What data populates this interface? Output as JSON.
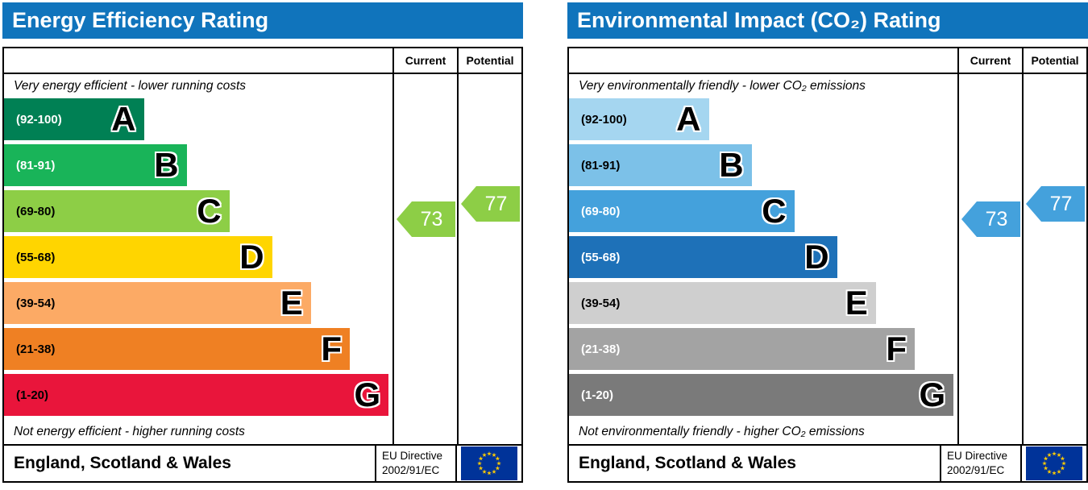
{
  "charts": [
    {
      "title": "Energy Efficiency Rating",
      "current_label": "Current",
      "potential_label": "Potential",
      "top_caption": "Very energy efficient - lower running costs",
      "bottom_caption": "Not energy efficient - higher running costs",
      "footer_region": "England, Scotland & Wales",
      "directive_line1": "EU Directive",
      "directive_line2": "2002/91/EC",
      "current": 73,
      "potential": 77,
      "header_color": "#1074bc",
      "current_arrow_color": "#8dce46",
      "potential_arrow_color": "#8dce46",
      "bands": [
        {
          "letter": "A",
          "range": "(92-100)",
          "low": 92,
          "high": 100,
          "color": "#008054",
          "text_color": "#ffffff",
          "width_pct": 36
        },
        {
          "letter": "B",
          "range": "(81-91)",
          "low": 81,
          "high": 91,
          "color": "#19b459",
          "text_color": "#ffffff",
          "width_pct": 47
        },
        {
          "letter": "C",
          "range": "(69-80)",
          "low": 69,
          "high": 80,
          "color": "#8dce46",
          "text_color": "#000000",
          "width_pct": 58
        },
        {
          "letter": "D",
          "range": "(55-68)",
          "low": 55,
          "high": 68,
          "color": "#ffd500",
          "text_color": "#000000",
          "width_pct": 69
        },
        {
          "letter": "E",
          "range": "(39-54)",
          "low": 39,
          "high": 54,
          "color": "#fcaa65",
          "text_color": "#000000",
          "width_pct": 79
        },
        {
          "letter": "F",
          "range": "(21-38)",
          "low": 21,
          "high": 38,
          "color": "#ef8023",
          "text_color": "#000000",
          "width_pct": 89
        },
        {
          "letter": "G",
          "range": "(1-20)",
          "low": 1,
          "high": 20,
          "color": "#e9153b",
          "text_color": "#000000",
          "width_pct": 99
        }
      ]
    },
    {
      "title": "Environmental Impact (CO₂) Rating",
      "current_label": "Current",
      "potential_label": "Potential",
      "top_caption": "Very environmentally friendly - lower CO₂ emissions",
      "bottom_caption": "Not environmentally friendly - higher CO₂ emissions",
      "footer_region": "England, Scotland & Wales",
      "directive_line1": "EU Directive",
      "directive_line2": "2002/91/EC",
      "current": 73,
      "potential": 77,
      "header_color": "#1074bc",
      "current_arrow_color": "#44a1dc",
      "potential_arrow_color": "#44a1dc",
      "bands": [
        {
          "letter": "A",
          "range": "(92-100)",
          "low": 92,
          "high": 100,
          "color": "#a5d6f0",
          "text_color": "#000000",
          "width_pct": 36
        },
        {
          "letter": "B",
          "range": "(81-91)",
          "low": 81,
          "high": 91,
          "color": "#7cc1e8",
          "text_color": "#000000",
          "width_pct": 47
        },
        {
          "letter": "C",
          "range": "(69-80)",
          "low": 69,
          "high": 80,
          "color": "#44a1dc",
          "text_color": "#ffffff",
          "width_pct": 58
        },
        {
          "letter": "D",
          "range": "(55-68)",
          "low": 55,
          "high": 68,
          "color": "#1e71b8",
          "text_color": "#ffffff",
          "width_pct": 69
        },
        {
          "letter": "E",
          "range": "(39-54)",
          "low": 39,
          "high": 54,
          "color": "#cfcfcf",
          "text_color": "#000000",
          "width_pct": 79
        },
        {
          "letter": "F",
          "range": "(21-38)",
          "low": 21,
          "high": 38,
          "color": "#a3a3a3",
          "text_color": "#ffffff",
          "width_pct": 89
        },
        {
          "letter": "G",
          "range": "(1-20)",
          "low": 1,
          "high": 20,
          "color": "#7a7a7a",
          "text_color": "#ffffff",
          "width_pct": 99
        }
      ]
    }
  ],
  "chart_data": [
    {
      "type": "bar",
      "title": "Energy Efficiency Rating",
      "categories": [
        "A",
        "B",
        "C",
        "D",
        "E",
        "F",
        "G"
      ],
      "band_ranges": [
        [
          92,
          100
        ],
        [
          81,
          91
        ],
        [
          69,
          80
        ],
        [
          55,
          68
        ],
        [
          39,
          54
        ],
        [
          21,
          38
        ],
        [
          1,
          20
        ]
      ],
      "series": [
        {
          "name": "Current",
          "values": [
            73
          ]
        },
        {
          "name": "Potential",
          "values": [
            77
          ]
        }
      ],
      "annotations": [
        "Very energy efficient - lower running costs",
        "Not energy efficient - higher running costs"
      ],
      "footer": "England, Scotland & Wales, EU Directive 2002/91/EC",
      "value_range": [
        1,
        100
      ]
    },
    {
      "type": "bar",
      "title": "Environmental Impact (CO₂) Rating",
      "categories": [
        "A",
        "B",
        "C",
        "D",
        "E",
        "F",
        "G"
      ],
      "band_ranges": [
        [
          92,
          100
        ],
        [
          81,
          91
        ],
        [
          69,
          80
        ],
        [
          55,
          68
        ],
        [
          39,
          54
        ],
        [
          21,
          38
        ],
        [
          1,
          20
        ]
      ],
      "series": [
        {
          "name": "Current",
          "values": [
            73
          ]
        },
        {
          "name": "Potential",
          "values": [
            77
          ]
        }
      ],
      "annotations": [
        "Very environmentally friendly - lower CO₂ emissions",
        "Not environmentally friendly - higher CO₂ emissions"
      ],
      "footer": "England, Scotland & Wales, EU Directive 2002/91/EC",
      "value_range": [
        1,
        100
      ]
    }
  ]
}
